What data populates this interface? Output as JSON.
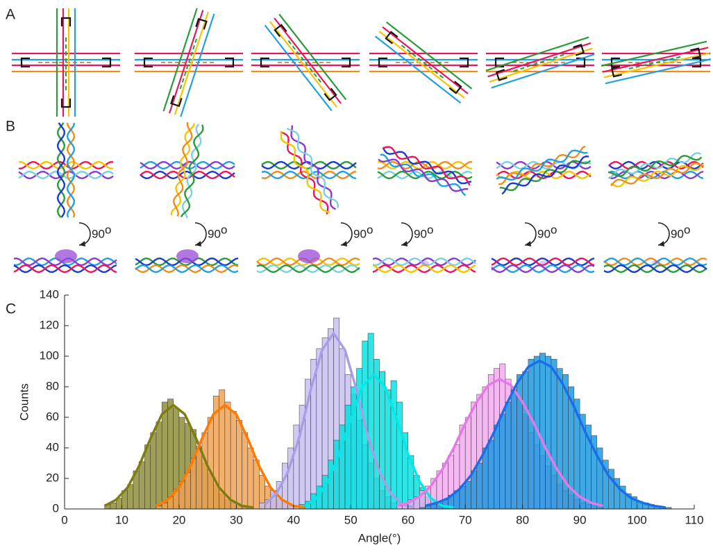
{
  "panels": {
    "labels": [
      "A",
      "B",
      "C"
    ],
    "rotation_label": "90",
    "rotation_superscript": "o"
  },
  "chart_data": {
    "type": "histogram",
    "xlabel": "Angle(°)",
    "ylabel": "Counts",
    "xlim": [
      0,
      110
    ],
    "xticks": [
      0,
      10,
      20,
      30,
      40,
      50,
      60,
      70,
      80,
      90,
      100,
      110
    ],
    "ylim": [
      0,
      140
    ],
    "yticks": [
      0,
      20,
      40,
      60,
      80,
      100,
      120,
      140
    ],
    "grid": false,
    "series": [
      {
        "color": "#8a8a32",
        "bins": [
          7,
          8,
          9,
          10,
          11,
          12,
          13,
          14,
          15,
          16,
          17,
          18,
          19,
          20,
          21,
          22,
          23,
          24,
          25,
          26,
          27,
          28,
          29,
          30,
          31,
          32,
          33
        ],
        "values": [
          3,
          4,
          7,
          12,
          16,
          25,
          31,
          42,
          50,
          57,
          70,
          72,
          66,
          60,
          56,
          52,
          40,
          30,
          23,
          16,
          10,
          6,
          4,
          2,
          1,
          1
        ],
        "fit": {
          "color": "#7d7d10",
          "x": [
            7,
            9,
            11,
            13,
            15,
            17,
            19,
            21,
            23,
            25,
            27,
            29,
            31,
            33
          ],
          "y": [
            2,
            6,
            14,
            28,
            46,
            62,
            68,
            62,
            46,
            28,
            14,
            6,
            2,
            1
          ]
        }
      },
      {
        "color": "#f0a050",
        "bins": [
          16,
          17,
          18,
          19,
          20,
          21,
          22,
          23,
          24,
          25,
          26,
          27,
          28,
          29,
          30,
          31,
          32,
          33,
          34,
          35,
          36,
          37,
          38,
          39,
          40,
          41,
          42
        ],
        "values": [
          2,
          4,
          8,
          13,
          18,
          24,
          33,
          41,
          50,
          60,
          74,
          78,
          70,
          64,
          58,
          50,
          40,
          32,
          22,
          15,
          10,
          6,
          4,
          2,
          1,
          1
        ],
        "fit": {
          "color": "#ff7b00",
          "x": [
            16,
            18,
            20,
            22,
            24,
            26,
            28,
            30,
            32,
            34,
            36,
            38,
            40,
            42
          ],
          "y": [
            2,
            6,
            14,
            28,
            46,
            62,
            68,
            62,
            46,
            28,
            14,
            6,
            2,
            1
          ]
        }
      },
      {
        "color": "#c4bdf0",
        "bins": [
          34,
          35,
          36,
          37,
          38,
          39,
          40,
          41,
          42,
          43,
          44,
          45,
          46,
          47,
          48,
          49,
          50,
          51,
          52,
          53,
          54,
          55,
          56,
          57,
          58,
          59,
          60
        ],
        "values": [
          4,
          6,
          12,
          18,
          30,
          40,
          55,
          68,
          85,
          98,
          105,
          112,
          118,
          125,
          105,
          88,
          75,
          58,
          42,
          30,
          20,
          12,
          8,
          4,
          2,
          1
        ],
        "fit": {
          "color": "#a89ee8",
          "x": [
            35,
            37,
            39,
            41,
            43,
            45,
            47,
            49,
            51,
            53,
            55,
            57,
            59,
            61
          ],
          "y": [
            3,
            10,
            24,
            47,
            78,
            104,
            115,
            104,
            78,
            47,
            24,
            10,
            3,
            1
          ]
        }
      },
      {
        "color": "#00e0e0",
        "bins": [
          41,
          42,
          43,
          44,
          45,
          46,
          47,
          48,
          49,
          50,
          51,
          52,
          53,
          54,
          55,
          56,
          57,
          58,
          59,
          60,
          61,
          62,
          63,
          64,
          65,
          66,
          67
        ],
        "values": [
          3,
          5,
          10,
          15,
          22,
          32,
          45,
          55,
          68,
          80,
          92,
          110,
          115,
          98,
          90,
          78,
          84,
          70,
          50,
          35,
          22,
          14,
          8,
          5,
          3,
          1
        ],
        "fit": {
          "color": "#00e8e8",
          "x": [
            42,
            44,
            46,
            48,
            50,
            52,
            54,
            56,
            58,
            60,
            62,
            64,
            66,
            68
          ],
          "y": [
            2,
            7,
            18,
            36,
            59,
            80,
            88,
            80,
            59,
            36,
            18,
            7,
            2,
            1
          ]
        }
      },
      {
        "color": "#f4a8f0",
        "bins": [
          58,
          59,
          60,
          61,
          62,
          63,
          64,
          65,
          66,
          67,
          68,
          69,
          70,
          71,
          72,
          73,
          74,
          75,
          76,
          77,
          78,
          79,
          80,
          81,
          82,
          83,
          84,
          85,
          86,
          87,
          88,
          89,
          90,
          91,
          92,
          93,
          94
        ],
        "values": [
          2,
          3,
          6,
          8,
          12,
          15,
          20,
          25,
          30,
          35,
          42,
          55,
          60,
          70,
          75,
          80,
          88,
          92,
          95,
          85,
          80,
          72,
          62,
          50,
          42,
          35,
          28,
          22,
          16,
          12,
          9,
          6,
          4,
          3,
          2,
          1
        ],
        "fit": {
          "color": "#e878e8",
          "x": [
            58,
            60,
            62,
            64,
            66,
            68,
            70,
            72,
            74,
            76,
            78,
            80,
            82,
            84,
            86,
            88,
            90,
            92,
            94
          ],
          "y": [
            2,
            4,
            8,
            15,
            26,
            40,
            56,
            70,
            81,
            85,
            81,
            70,
            56,
            40,
            26,
            15,
            8,
            4,
            2
          ]
        }
      },
      {
        "color": "#1596e0",
        "bins": [
          62,
          63,
          64,
          65,
          66,
          67,
          68,
          69,
          70,
          71,
          72,
          73,
          74,
          75,
          76,
          77,
          78,
          79,
          80,
          81,
          82,
          83,
          84,
          85,
          86,
          87,
          88,
          89,
          90,
          91,
          92,
          93,
          94,
          95,
          96,
          97,
          98,
          99,
          100,
          101,
          102,
          103,
          104,
          105,
          106
        ],
        "values": [
          1,
          2,
          3,
          4,
          6,
          9,
          12,
          15,
          18,
          25,
          30,
          40,
          45,
          55,
          62,
          70,
          78,
          88,
          90,
          98,
          100,
          102,
          100,
          98,
          92,
          88,
          80,
          72,
          62,
          55,
          48,
          40,
          32,
          26,
          20,
          15,
          10,
          8,
          5,
          4,
          3,
          2,
          1,
          1
        ],
        "fit": {
          "color": "#1a6fe8",
          "x": [
            63,
            65,
            67,
            69,
            71,
            73,
            75,
            77,
            79,
            81,
            83,
            85,
            87,
            89,
            91,
            93,
            95,
            97,
            99,
            101,
            103,
            105
          ],
          "y": [
            2,
            4,
            7,
            13,
            22,
            35,
            50,
            67,
            82,
            93,
            97,
            93,
            82,
            67,
            50,
            35,
            22,
            13,
            7,
            4,
            2,
            1
          ]
        }
      }
    ]
  }
}
